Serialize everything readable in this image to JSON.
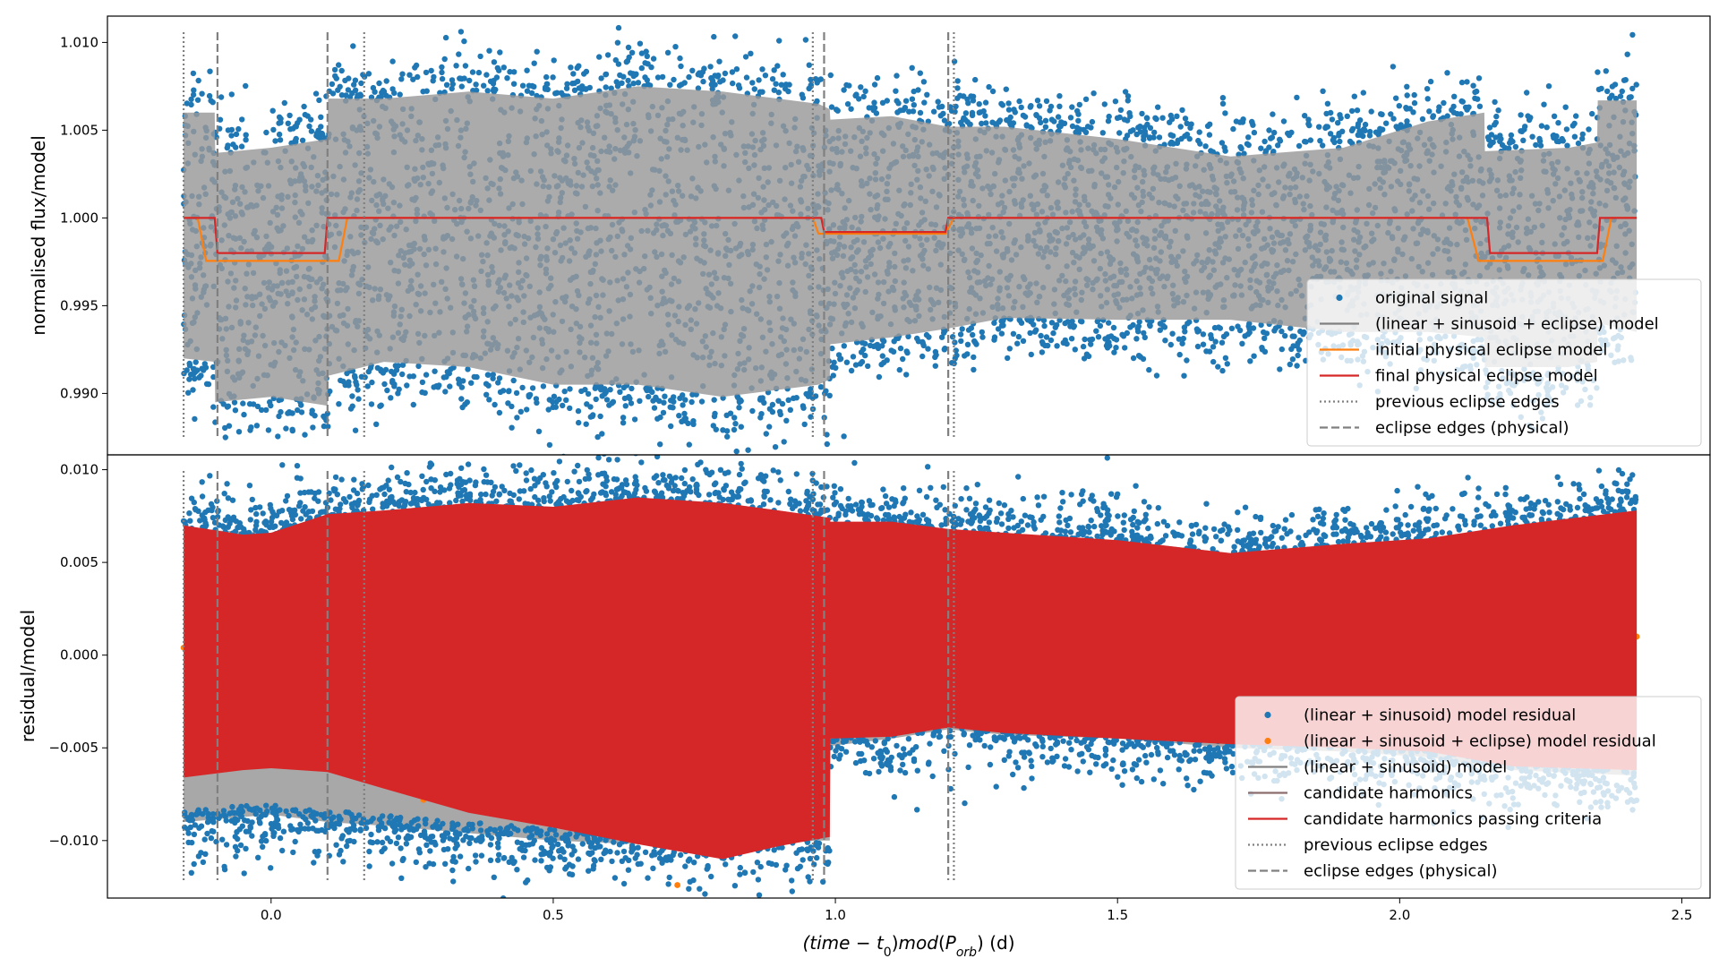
{
  "colors": {
    "blue": "#1f77b4",
    "orange": "#ff7f0e",
    "red": "#d62728",
    "gray": "#808080",
    "brown_gray": "#8c6d6d",
    "band_gray": "#999999"
  },
  "chart_data": [
    {
      "type": "scatter",
      "panel": "top",
      "title": "",
      "xlabel": "",
      "ylabel": "normalised flux/model",
      "xlim": [
        -0.29,
        2.55
      ],
      "ylim": [
        0.9865,
        1.0115
      ],
      "yticks": [
        0.99,
        0.995,
        1.0,
        1.005,
        1.01
      ],
      "ytick_labels": [
        "0.990",
        "0.995",
        "1.000",
        "1.005",
        "1.010"
      ],
      "data_extent": [
        -0.155,
        2.42
      ],
      "scatter_noise": 0.0022,
      "model_band": {
        "x": [
          -0.155,
          -0.1,
          -0.099,
          0.0,
          0.1,
          0.101,
          0.2,
          0.35,
          0.5,
          0.65,
          0.8,
          0.97,
          0.99,
          0.991,
          1.1,
          1.2,
          1.3,
          1.5,
          1.7,
          1.9,
          2.05,
          2.15,
          2.151,
          2.3,
          2.35,
          2.351,
          2.42
        ],
        "upper": [
          1.006,
          1.006,
          1.0037,
          1.004,
          1.0045,
          1.0068,
          1.0068,
          1.0072,
          1.0068,
          1.0075,
          1.0072,
          1.0065,
          1.0062,
          1.0056,
          1.0058,
          1.0052,
          1.0052,
          1.0045,
          1.0035,
          1.004,
          1.0055,
          1.006,
          1.0038,
          1.004,
          1.0043,
          1.0067,
          1.0067
        ],
        "lower": [
          0.992,
          0.9918,
          0.9895,
          0.9898,
          0.9893,
          0.991,
          0.9918,
          0.9915,
          0.9905,
          0.9905,
          0.9898,
          0.9905,
          0.9908,
          0.9928,
          0.9932,
          0.9937,
          0.9943,
          0.9942,
          0.9942,
          0.9935,
          0.9935,
          0.9932,
          0.9915,
          0.9915,
          0.9918,
          0.994,
          0.9935
        ]
      },
      "series": [
        {
          "name": "initial physical eclipse model",
          "color": "#ff7f0e",
          "x": [
            -0.155,
            -0.13,
            -0.115,
            0.12,
            0.135,
            0.96,
            0.97,
            1.195,
            1.21,
            2.12,
            2.14,
            2.36,
            2.375,
            2.42
          ],
          "y": [
            1.0,
            1.0,
            0.99755,
            0.99755,
            1.0,
            1.0,
            0.9991,
            0.9991,
            1.0,
            1.0,
            0.99755,
            0.99755,
            1.0,
            1.0
          ]
        },
        {
          "name": "final physical eclipse model",
          "color": "#d62728",
          "x": [
            -0.155,
            -0.1,
            -0.095,
            0.095,
            0.1,
            0.975,
            0.98,
            1.195,
            1.2,
            2.155,
            2.16,
            2.35,
            2.355,
            2.42
          ],
          "y": [
            1.0,
            1.0,
            0.998,
            0.998,
            1.0,
            1.0,
            0.9992,
            0.9992,
            1.0,
            1.0,
            0.998,
            0.998,
            1.0,
            1.0
          ]
        }
      ],
      "vlines_dotted": [
        -0.155,
        0.165,
        0.96,
        1.21
      ],
      "vlines_dashed": [
        -0.095,
        0.1,
        0.98,
        1.2
      ],
      "legend": {
        "placement": "lower-right",
        "entries": [
          {
            "label": "original signal",
            "kind": "dot",
            "color": "#1f77b4"
          },
          {
            "label": "(linear + sinusoid + eclipse) model",
            "kind": "line",
            "color": "#808080"
          },
          {
            "label": "initial physical eclipse model",
            "kind": "line",
            "color": "#ff7f0e"
          },
          {
            "label": "final physical eclipse model",
            "kind": "line",
            "color": "#d62728"
          },
          {
            "label": "previous eclipse edges",
            "kind": "dotted",
            "color": "#808080"
          },
          {
            "label": "eclipse edges (physical)",
            "kind": "dashed",
            "color": "#808080"
          }
        ]
      }
    },
    {
      "type": "scatter",
      "panel": "bottom",
      "title": "",
      "xlabel": "(time − t₀)mod(P_orb) (d)",
      "ylabel": "residual/model",
      "xlim": [
        -0.29,
        2.55
      ],
      "ylim": [
        -0.0131,
        0.0108
      ],
      "yticks": [
        -0.01,
        -0.005,
        0.0,
        0.005,
        0.01
      ],
      "ytick_labels": [
        "−0.010",
        "−0.005",
        "0.000",
        "0.005",
        "0.010"
      ],
      "xticks": [
        0.0,
        0.5,
        1.0,
        1.5,
        2.0,
        2.5
      ],
      "xtick_labels": [
        "0.0",
        "0.5",
        "1.0",
        "1.5",
        "2.0",
        "2.5"
      ],
      "data_extent": [
        -0.155,
        2.42
      ],
      "scatter_noise": 0.0022,
      "gray_band": {
        "x": [
          -0.155,
          0.0,
          0.1,
          0.2,
          0.35,
          0.5,
          0.65,
          0.8,
          0.97,
          0.99,
          0.991,
          1.1,
          1.2,
          1.3,
          1.5,
          1.7,
          1.9,
          2.05,
          2.2,
          2.42
        ],
        "upper": [
          0.0068,
          0.0066,
          0.0076,
          0.0078,
          0.0082,
          0.008,
          0.0085,
          0.0082,
          0.0075,
          0.0073,
          0.0071,
          0.0072,
          0.0067,
          0.0065,
          0.0062,
          0.0055,
          0.006,
          0.0063,
          0.0069,
          0.0078
        ],
        "lower": [
          -0.009,
          -0.0086,
          -0.009,
          -0.0092,
          -0.0096,
          -0.01,
          -0.0102,
          -0.0104,
          -0.01,
          -0.01,
          -0.0049,
          -0.0045,
          -0.004,
          -0.0043,
          -0.0045,
          -0.005,
          -0.0052,
          -0.0055,
          -0.0062,
          -0.0065
        ]
      },
      "red_band": {
        "x": [
          -0.155,
          -0.05,
          0.0,
          0.1,
          0.2,
          0.35,
          0.5,
          0.65,
          0.8,
          0.9,
          0.99,
          0.991,
          1.1,
          1.2,
          1.3,
          1.5,
          1.7,
          1.9,
          2.05,
          2.2,
          2.42
        ],
        "upper": [
          0.007,
          0.0065,
          0.0066,
          0.0076,
          0.0078,
          0.0082,
          0.008,
          0.0085,
          0.0082,
          0.0078,
          0.0074,
          0.0072,
          0.0072,
          0.0068,
          0.0066,
          0.0062,
          0.0055,
          0.006,
          0.0063,
          0.007,
          0.0078
        ],
        "lower": [
          -0.0066,
          -0.0062,
          -0.0061,
          -0.0063,
          -0.0072,
          -0.0085,
          -0.0093,
          -0.0102,
          -0.011,
          -0.0103,
          -0.0098,
          -0.0045,
          -0.0044,
          -0.0039,
          -0.0042,
          -0.0045,
          -0.0048,
          -0.005,
          -0.0052,
          -0.006,
          -0.0062
        ]
      },
      "vlines_dotted": [
        -0.155,
        0.165,
        0.96,
        1.21
      ],
      "vlines_dashed": [
        -0.095,
        0.1,
        0.98,
        1.2
      ],
      "legend": {
        "placement": "lower-right",
        "entries": [
          {
            "label": "(linear + sinusoid) model residual",
            "kind": "dot",
            "color": "#1f77b4"
          },
          {
            "label": "(linear + sinusoid + eclipse) model residual",
            "kind": "dot",
            "color": "#ff7f0e"
          },
          {
            "label": "(linear + sinusoid) model",
            "kind": "line",
            "color": "#808080"
          },
          {
            "label": "candidate harmonics",
            "kind": "line",
            "color": "#8c6d6d"
          },
          {
            "label": "candidate harmonics passing criteria",
            "kind": "line",
            "color": "#d62728"
          },
          {
            "label": "previous eclipse edges",
            "kind": "dotted",
            "color": "#808080"
          },
          {
            "label": "eclipse edges (physical)",
            "kind": "dashed",
            "color": "#808080"
          }
        ]
      }
    }
  ]
}
